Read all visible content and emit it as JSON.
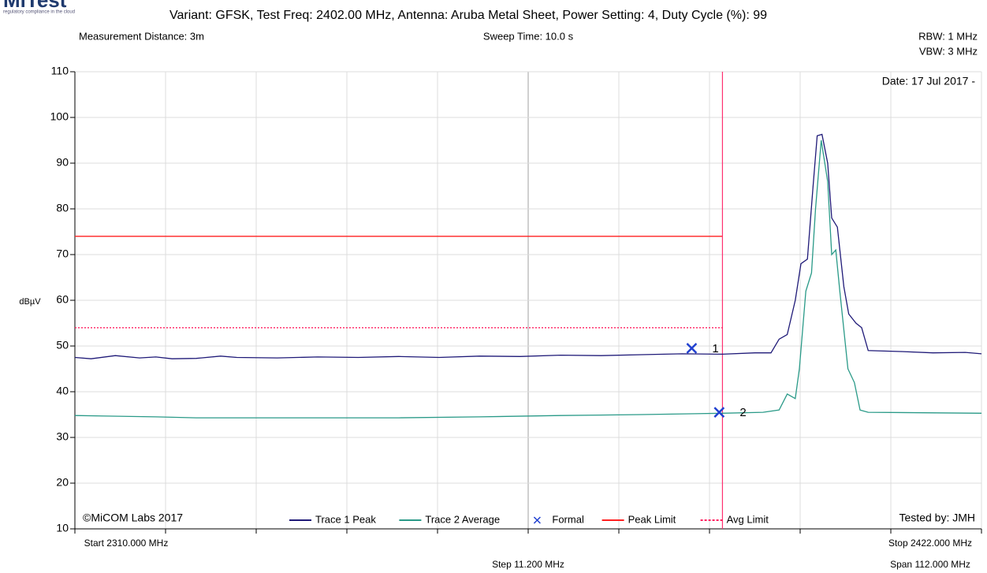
{
  "chart_data": {
    "type": "line",
    "logo": "MiTest",
    "logo_subtitle": "regulatory compliance in the cloud",
    "title": "Variant: GFSK, Test Freq: 2402.00 MHz, Antenna: Aruba Metal Sheet, Power Setting: 4, Duty Cycle (%): 99",
    "measurement_distance": "Measurement Distance: 3m",
    "sweep_time": "Sweep Time: 10.0 s",
    "rbw": "RBW: 1 MHz",
    "vbw": "VBW: 3 MHz",
    "date": "Date: 17 Jul 2017 -",
    "y_label": "dBµV",
    "copyright": "©MiCOM Labs 2017",
    "tested_by": "Tested by: JMH",
    "start_label": "Start 2310.000 MHz",
    "stop_label": "Stop 2422.000 MHz",
    "step_label": "Step 11.200 MHz",
    "span_label": "Span 112.000 MHz",
    "xlim": [
      2310,
      2422
    ],
    "xticks": [
      2310,
      2321.2,
      2332.4,
      2343.6,
      2354.8,
      2366,
      2377.2,
      2388.4,
      2399.6,
      2410.8,
      2422
    ],
    "ylim": [
      10,
      110
    ],
    "yticks": [
      10,
      20,
      30,
      40,
      50,
      60,
      70,
      80,
      90,
      100,
      110
    ],
    "grid": true,
    "series": [
      {
        "name": "Trace 1 Peak",
        "color": "#1f1a78",
        "x": [
          2310,
          2312,
          2315,
          2318,
          2320,
          2322,
          2325,
          2328,
          2330,
          2335,
          2340,
          2345,
          2350,
          2355,
          2360,
          2365,
          2370,
          2375,
          2380,
          2385,
          2390,
          2394,
          2396,
          2397,
          2398,
          2399,
          2399.7,
          2400.5,
          2401.2,
          2401.7,
          2402.3,
          2403,
          2403.5,
          2404.2,
          2405,
          2405.6,
          2406.5,
          2407.2,
          2408,
          2412,
          2416,
          2420,
          2422
        ],
        "values": [
          47.5,
          47.2,
          47.9,
          47.4,
          47.6,
          47.2,
          47.3,
          47.8,
          47.5,
          47.4,
          47.6,
          47.5,
          47.7,
          47.5,
          47.8,
          47.7,
          48.0,
          47.9,
          48.1,
          48.3,
          48.2,
          48.5,
          48.5,
          51.5,
          52.5,
          60,
          68,
          69,
          85,
          96,
          96.3,
          90,
          78,
          76,
          63,
          57,
          55,
          54,
          49,
          48.8,
          48.5,
          48.6,
          48.3
        ]
      },
      {
        "name": "Trace 2 Average",
        "color": "#2a9a88",
        "x": [
          2310,
          2320,
          2325,
          2350,
          2360,
          2370,
          2380,
          2390,
          2395,
          2397,
          2398,
          2399,
          2399.5,
          2400.3,
          2401,
          2401.5,
          2402.2,
          2403,
          2403.5,
          2404,
          2404.5,
          2405.5,
          2406.3,
          2407,
          2408,
          2422
        ],
        "values": [
          34.8,
          34.5,
          34.3,
          34.3,
          34.5,
          34.8,
          35,
          35.3,
          35.5,
          36,
          39.5,
          38.5,
          45,
          62,
          66,
          80,
          95,
          86,
          70,
          71,
          62,
          45,
          42,
          36,
          35.5,
          35.3
        ]
      }
    ],
    "limits": [
      {
        "name": "Peak Limit",
        "color": "#ff2020",
        "dashed": false,
        "value": 74,
        "x": [
          2310,
          2390
        ]
      },
      {
        "name": "Avg Limit",
        "color": "#ff2060",
        "dashed": true,
        "value": 54,
        "x": [
          2310,
          2390
        ]
      }
    ],
    "cursor_x": 2390,
    "marker_legend": "Formal",
    "marker_color": "#2040d0",
    "markers": [
      {
        "label": "1",
        "x": 2386.2,
        "y": 49.5
      },
      {
        "label": "2",
        "x": 2389.6,
        "y": 35.5
      }
    ]
  }
}
